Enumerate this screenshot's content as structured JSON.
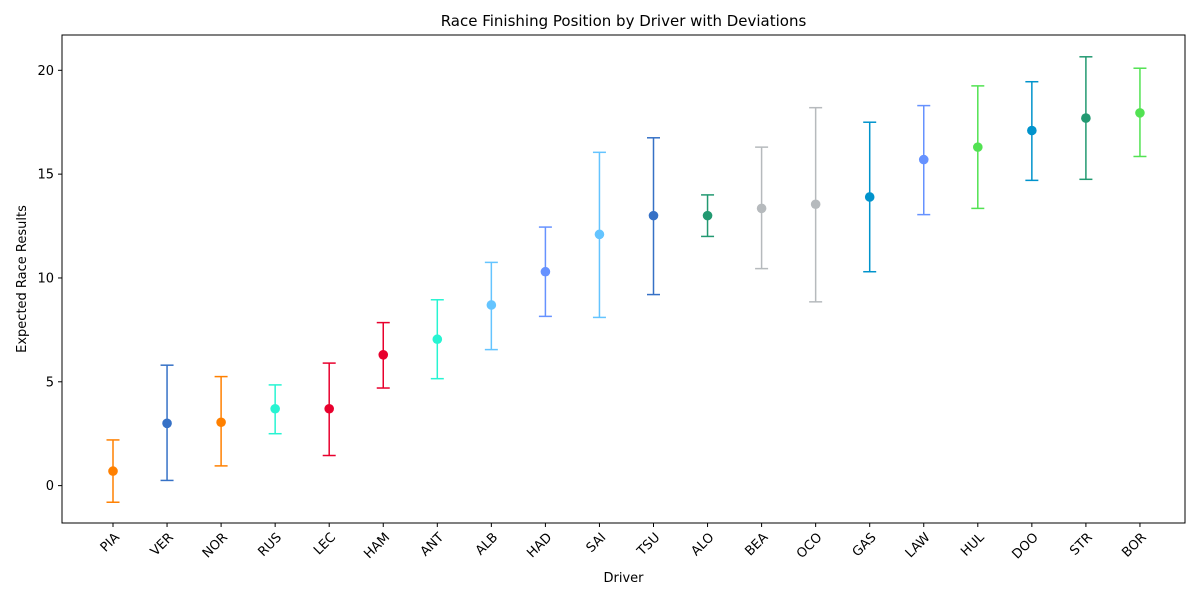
{
  "chart_data": {
    "type": "scatter",
    "title": "Race Finishing Position by Driver with Deviations",
    "xlabel": "Driver",
    "ylabel": "Expected Race Results",
    "ylim": [
      -1.8,
      21.7
    ],
    "yticks": [
      0,
      5,
      10,
      15,
      20
    ],
    "grid": false,
    "points": [
      {
        "driver": "PIA",
        "value": 0.7,
        "low": -0.8,
        "high": 2.2,
        "color": "#FF8000"
      },
      {
        "driver": "VER",
        "value": 3.0,
        "low": 0.25,
        "high": 5.8,
        "color": "#3671C6"
      },
      {
        "driver": "NOR",
        "value": 3.05,
        "low": 0.95,
        "high": 5.25,
        "color": "#FF8000"
      },
      {
        "driver": "RUS",
        "value": 3.7,
        "low": 2.5,
        "high": 4.85,
        "color": "#27F4D2"
      },
      {
        "driver": "LEC",
        "value": 3.7,
        "low": 1.45,
        "high": 5.9,
        "color": "#E8002D"
      },
      {
        "driver": "HAM",
        "value": 6.3,
        "low": 4.7,
        "high": 7.85,
        "color": "#E8002D"
      },
      {
        "driver": "ANT",
        "value": 7.05,
        "low": 5.15,
        "high": 8.95,
        "color": "#27F4D2"
      },
      {
        "driver": "ALB",
        "value": 8.7,
        "low": 6.55,
        "high": 10.75,
        "color": "#64C4FF"
      },
      {
        "driver": "HAD",
        "value": 10.3,
        "low": 8.15,
        "high": 12.45,
        "color": "#6692FF"
      },
      {
        "driver": "SAI",
        "value": 12.1,
        "low": 8.1,
        "high": 16.05,
        "color": "#64C4FF"
      },
      {
        "driver": "TSU",
        "value": 13.0,
        "low": 9.2,
        "high": 16.75,
        "color": "#3671C6"
      },
      {
        "driver": "ALO",
        "value": 13.0,
        "low": 12.0,
        "high": 14.0,
        "color": "#229971"
      },
      {
        "driver": "BEA",
        "value": 13.35,
        "low": 10.45,
        "high": 16.3,
        "color": "#B6BABD"
      },
      {
        "driver": "OCO",
        "value": 13.55,
        "low": 8.85,
        "high": 18.2,
        "color": "#B6BABD"
      },
      {
        "driver": "GAS",
        "value": 13.9,
        "low": 10.3,
        "high": 17.5,
        "color": "#0093CC"
      },
      {
        "driver": "LAW",
        "value": 15.7,
        "low": 13.05,
        "high": 18.3,
        "color": "#6692FF"
      },
      {
        "driver": "HUL",
        "value": 16.3,
        "low": 13.35,
        "high": 19.25,
        "color": "#52E252"
      },
      {
        "driver": "DOO",
        "value": 17.1,
        "low": 14.7,
        "high": 19.45,
        "color": "#0093CC"
      },
      {
        "driver": "STR",
        "value": 17.7,
        "low": 14.75,
        "high": 20.65,
        "color": "#229971"
      },
      {
        "driver": "BOR",
        "value": 17.95,
        "low": 15.85,
        "high": 20.1,
        "color": "#52E252"
      }
    ]
  }
}
